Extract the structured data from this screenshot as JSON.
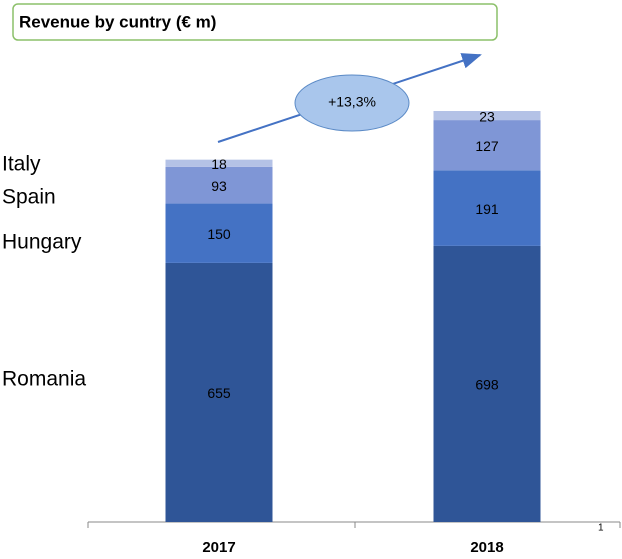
{
  "chart_data": {
    "type": "stacked_bar",
    "title": "Revenue by cuntry (€ m)",
    "categories": [
      "2017",
      "2018"
    ],
    "series": [
      {
        "name": "Romania",
        "color": "#2f5597",
        "values": [
          655,
          698
        ]
      },
      {
        "name": "Hungary",
        "color": "#4472c4",
        "values": [
          150,
          191
        ]
      },
      {
        "name": "Spain",
        "color": "#7f96d6",
        "values": [
          93,
          127
        ]
      },
      {
        "name": "Italy",
        "color": "#b4c2e6",
        "values": [
          18,
          23
        ]
      }
    ],
    "annotation": "+13,3%"
  },
  "page_number": "1"
}
